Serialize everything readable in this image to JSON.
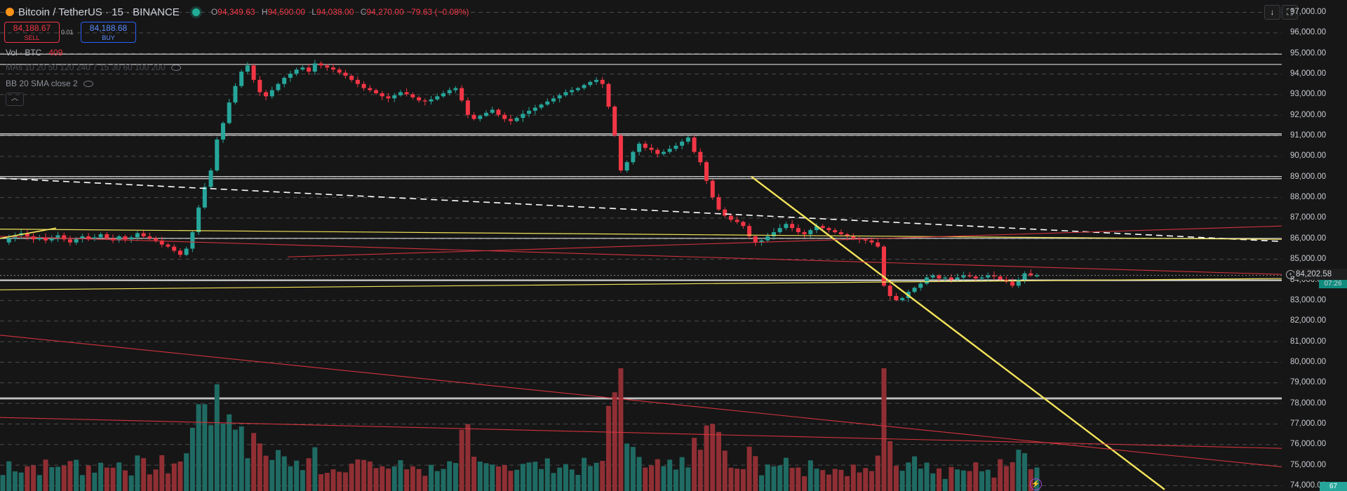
{
  "header": {
    "symbol": "Bitcoin / TetherUS · 15 · BINANCE",
    "ohlc": {
      "o_label": "O",
      "o_value": "94,349.63",
      "h_label": "H",
      "h_value": "94,500.00",
      "l_label": "L",
      "l_value": "94,038.00",
      "c_label": "C",
      "c_value": "94,270.00 −79.63 (−0.08%)"
    }
  },
  "trade": {
    "sell_price": "84,188.67",
    "sell_label": "SELL",
    "spread": "0.01",
    "buy_price": "84,188.68",
    "buy_label": "BUY"
  },
  "indicators": [
    {
      "name": "Vol · BTC",
      "value": "409"
    },
    {
      "name": "MAs 10 20 50 120 240 7 15 30 60 100 200"
    },
    {
      "name": "BB 20 SMA close 2"
    }
  ],
  "price_scale": {
    "ticks": [
      "97,000.00",
      "96,000.00",
      "95,000.00",
      "94,000.00",
      "93,000.00",
      "92,000.00",
      "91,000.00",
      "90,000.00",
      "89,000.00",
      "88,000.00",
      "87,000.00",
      "86,000.00",
      "85,000.00",
      "84,000.00",
      "83,000.00",
      "82,000.00",
      "81,000.00",
      "80,000.00",
      "79,000.00",
      "78,000.00",
      "77,000.00",
      "76,000.00",
      "75,000.00",
      "74,000.00"
    ],
    "current_price": "84,202.58",
    "countdown": "07:26",
    "volume_badge": "67"
  },
  "toolbar": {
    "scroll_down": "↓",
    "fullscreen": "⛶"
  },
  "colors": {
    "background": "#161616",
    "up": "#26a69a",
    "down": "#f23645",
    "vol_up": "#1f6b63",
    "vol_down": "#8f2f34",
    "trendline_yellow": "#f2e35a",
    "trendline_red": "#d1333d",
    "level_white": "#d9d9d9"
  },
  "chart_data": {
    "type": "candlestick",
    "symbol": "BTCUSDT",
    "interval": "15",
    "ylim": [
      73800,
      97200
    ],
    "series": [
      {
        "name": "price_path",
        "values": [
          85800,
          86000,
          86150,
          86250,
          86100,
          85950,
          86050,
          85900,
          86000,
          86150,
          85950,
          85800,
          86000,
          86100,
          85950,
          86050,
          86200,
          86000,
          85900,
          86100,
          85950,
          86050,
          86250,
          86100,
          86000,
          85900,
          85700,
          85600,
          85400,
          85200,
          85500,
          86300,
          87500,
          88500,
          89300,
          90800,
          91600,
          92600,
          93400,
          94100,
          94400,
          93700,
          93100,
          92900,
          93200,
          93500,
          93800,
          94000,
          94200,
          94300,
          94100,
          94500,
          94400,
          94300,
          94200,
          94050,
          93900,
          93700,
          93500,
          93300,
          93200,
          93050,
          92900,
          92800,
          92950,
          93100,
          93000,
          92850,
          92700,
          92650,
          92750,
          92900,
          93050,
          93200,
          93300,
          92700,
          92000,
          91800,
          91950,
          92100,
          92250,
          92000,
          91800,
          91700,
          91850,
          92050,
          92200,
          92350,
          92500,
          92650,
          92800,
          92950,
          93100,
          93200,
          93300,
          93450,
          93600,
          93700,
          93500,
          92400,
          91000,
          89300,
          89700,
          90200,
          90600,
          90400,
          90300,
          90100,
          90200,
          90350,
          90500,
          90700,
          90900,
          90200,
          89700,
          88800,
          88000,
          87400,
          87100,
          86900,
          86800,
          86600,
          86100,
          85800,
          85900,
          86100,
          86300,
          86500,
          86700,
          86500,
          86300,
          86200,
          86400,
          86600,
          86500,
          86400,
          86300,
          86200,
          86100,
          86000,
          85950,
          85900,
          85800,
          85600,
          83700,
          83200,
          83000,
          83100,
          83400,
          83600,
          83800,
          84100,
          84200,
          84050,
          84100,
          84000,
          84100,
          84200,
          84150,
          84050,
          84100,
          84200,
          84150,
          84000,
          83900,
          83700,
          84000,
          84300,
          84200,
          84202.58
        ]
      }
    ],
    "volume_range": [
      0,
      500
    ]
  }
}
